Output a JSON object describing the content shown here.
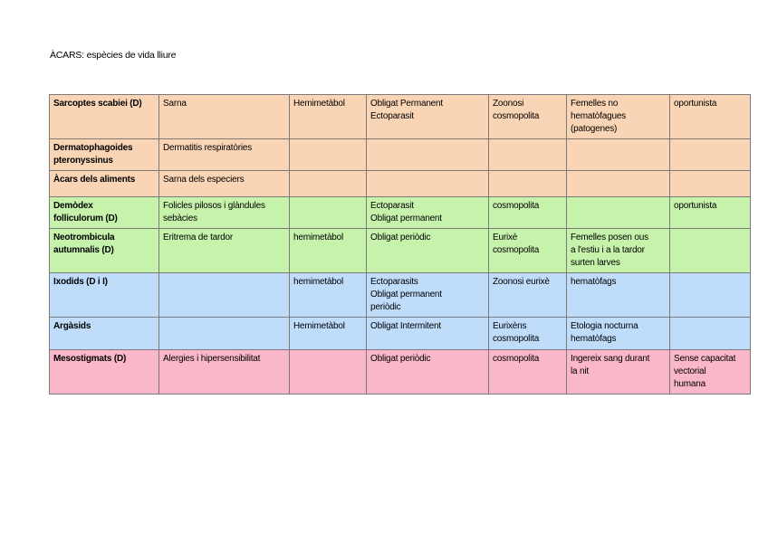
{
  "document": {
    "heading": "ÀCARS: espècies de vida lliure"
  },
  "colors": {
    "orange": "#fad5b5",
    "green": "#c6f2ab",
    "blue": "#bfdcfb",
    "pink": "#f9b7c9",
    "border": "#7a7a7a"
  },
  "table": {
    "rows": [
      {
        "color": "orange",
        "cells": [
          "Sarcoptes scabiei (D)",
          "Sarna",
          "Hemimetàbol",
          "Obligat Permanent\nEctoparasit",
          "Zoonosi\ncosmopolita",
          "Femelles no\nhematòfagues\n(patogenes)",
          "oportunista"
        ]
      },
      {
        "color": "orange",
        "cells": [
          "Dermatophagoides\npteronyssinus",
          "Dermatitis respiratòries",
          "",
          "",
          "",
          "",
          ""
        ]
      },
      {
        "color": "orange",
        "cells": [
          "Àcars dels aliments",
          "Sarna dels especiers",
          "",
          "",
          "",
          "",
          ""
        ]
      },
      {
        "color": "green",
        "cells": [
          "Demòdex\nfolliculorum (D)",
          "Folicles pilosos i glàndules\nsebàcies",
          "",
          "Ectoparasit\nObligat permanent",
          "cosmopolita",
          "",
          "oportunista"
        ]
      },
      {
        "color": "green",
        "cells": [
          "Neotrombicula\nautumnalis (D)",
          "Eritrema de tardor",
          "hemimetàbol",
          "Obligat periòdic",
          "Eurixè\ncosmopolita",
          "Femelles posen ous\na l'estiu i a la tardor\nsurten larves",
          ""
        ]
      },
      {
        "color": "blue",
        "cells": [
          "Ixodids (D i I)",
          "",
          "hemimetàbol",
          "Ectoparasits\nObligat permanent\nperiòdic",
          "Zoonosi eurixè",
          "hematòfags",
          ""
        ]
      },
      {
        "color": "blue",
        "cells": [
          "Argàsids",
          "",
          "Hemimetàbol",
          "Obligat Intermitent",
          "Eurixèns\ncosmopolita",
          "Etologia nocturna\nhematòfags",
          ""
        ]
      },
      {
        "color": "pink",
        "cells": [
          "Mesostigmats (D)",
          "Alergies i hipersensibilitat",
          "",
          "Obligat periòdic",
          "cosmopolita",
          "Ingereix sang durant\nla nit",
          "Sense capacitat\nvectorial\nhumana"
        ]
      }
    ]
  }
}
